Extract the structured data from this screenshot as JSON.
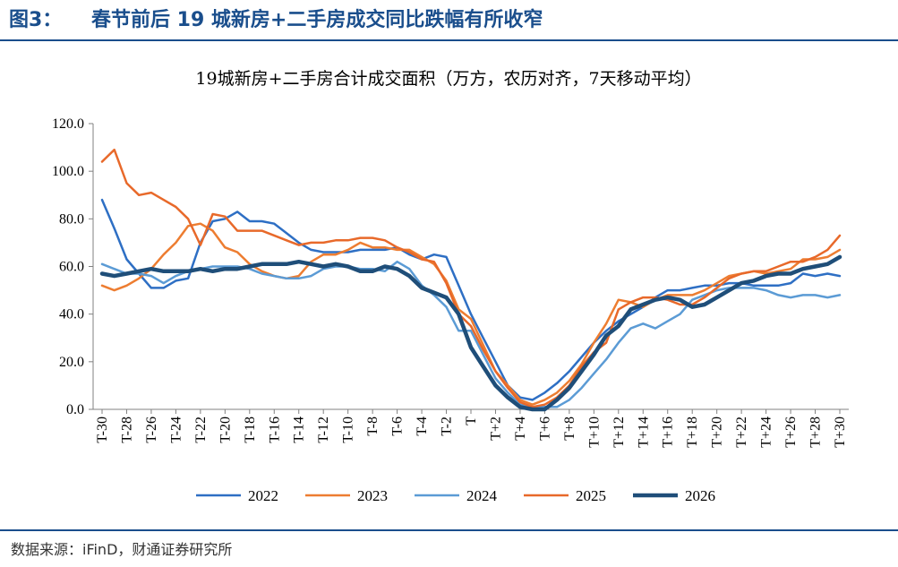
{
  "header": {
    "figure_number": "图3：",
    "figure_title": "春节前后 19 城新房+二手房成交同比跌幅有所收窄"
  },
  "source": "数据来源：iFinD，财通证券研究所",
  "chart_data": {
    "type": "line",
    "title": "19城新房+二手房合计成交面积（万方，农历对齐，7天移动平均）",
    "xlabel": "",
    "ylabel": "",
    "ylim": [
      0,
      120
    ],
    "yticks": [
      "0.0",
      "20.0",
      "40.0",
      "60.0",
      "80.0",
      "100.0",
      "120.0"
    ],
    "x": [
      "T-30",
      "T-29",
      "T-28",
      "T-27",
      "T-26",
      "T-25",
      "T-24",
      "T-23",
      "T-22",
      "T-21",
      "T-20",
      "T-19",
      "T-18",
      "T-17",
      "T-16",
      "T-15",
      "T-14",
      "T-13",
      "T-12",
      "T-11",
      "T-10",
      "T-9",
      "T-8",
      "T-7",
      "T-6",
      "T-5",
      "T-4",
      "T-3",
      "T-2",
      "T-1",
      "T",
      "T+1",
      "T+2",
      "T+3",
      "T+4",
      "T+5",
      "T+6",
      "T+7",
      "T+8",
      "T+9",
      "T+10",
      "T+11",
      "T+12",
      "T+13",
      "T+14",
      "T+15",
      "T+16",
      "T+17",
      "T+18",
      "T+19",
      "T+20",
      "T+21",
      "T+22",
      "T+23",
      "T+24",
      "T+25",
      "T+26",
      "T+27",
      "T+28",
      "T+29",
      "T+30"
    ],
    "xtick_labels": [
      "T-30",
      "T-28",
      "T-26",
      "T-24",
      "T-22",
      "T-20",
      "T-18",
      "T-16",
      "T-14",
      "T-12",
      "T-10",
      "T-8",
      "T-6",
      "T-4",
      "T-2",
      "T",
      "T+2",
      "T+4",
      "T+6",
      "T+8",
      "T+10",
      "T+12",
      "T+14",
      "T+16",
      "T+18",
      "T+20",
      "T+22",
      "T+24",
      "T+26",
      "T+28",
      "T+30"
    ],
    "legend_position": "bottom",
    "grid": false,
    "series": [
      {
        "name": "2022",
        "color": "#2e6fc4",
        "width": 2.5,
        "values": [
          88,
          76,
          63,
          57,
          51,
          51,
          54,
          55,
          70,
          79,
          80,
          83,
          79,
          79,
          78,
          74,
          70,
          67,
          66,
          66,
          66,
          67,
          67,
          67,
          68,
          65,
          63,
          65,
          64,
          52,
          40,
          30,
          20,
          10,
          5,
          4,
          7,
          11,
          16,
          22,
          28,
          33,
          37,
          40,
          43,
          47,
          50,
          50,
          51,
          52,
          52,
          53,
          53,
          52,
          52,
          52,
          53,
          57,
          56,
          57,
          56
        ]
      },
      {
        "name": "2023",
        "color": "#ed7d31",
        "width": 2.5,
        "values": [
          52,
          50,
          52,
          55,
          59,
          65,
          70,
          77,
          78,
          75,
          68,
          66,
          61,
          58,
          56,
          55,
          56,
          62,
          65,
          65,
          67,
          70,
          68,
          68,
          67,
          67,
          64,
          61,
          54,
          42,
          38,
          27,
          16,
          10,
          4,
          2,
          4,
          7,
          12,
          19,
          28,
          36,
          46,
          45,
          43,
          46,
          48,
          48,
          48,
          50,
          53,
          56,
          57,
          58,
          57,
          58,
          59,
          63,
          63,
          64,
          67
        ]
      },
      {
        "name": "2024",
        "color": "#5b9bd5",
        "width": 2.5,
        "values": [
          61,
          59,
          57,
          57,
          56,
          53,
          56,
          58,
          59,
          60,
          60,
          60,
          59,
          57,
          56,
          55,
          55,
          56,
          59,
          60,
          60,
          59,
          59,
          58,
          62,
          59,
          52,
          48,
          43,
          33,
          33,
          23,
          13,
          7,
          2,
          1,
          1,
          1,
          4,
          9,
          15,
          21,
          28,
          34,
          36,
          34,
          37,
          40,
          46,
          48,
          50,
          51,
          51,
          51,
          50,
          48,
          47,
          48,
          48,
          47,
          48
        ]
      },
      {
        "name": "2025",
        "color": "#e8692a",
        "width": 2.5,
        "values": [
          104,
          109,
          95,
          90,
          91,
          88,
          85,
          80,
          69,
          82,
          81,
          75,
          75,
          75,
          73,
          71,
          69,
          70,
          70,
          71,
          71,
          72,
          72,
          71,
          68,
          66,
          63,
          62,
          53,
          40,
          35,
          25,
          16,
          9,
          3,
          1,
          2,
          5,
          10,
          18,
          24,
          28,
          42,
          45,
          47,
          47,
          46,
          44,
          44,
          47,
          51,
          55,
          57,
          58,
          58,
          60,
          62,
          62,
          64,
          67,
          73
        ]
      },
      {
        "name": "2026",
        "color": "#1f4e79",
        "width": 4.5,
        "values": [
          57,
          56,
          57,
          58,
          59,
          58,
          58,
          58,
          59,
          58,
          59,
          59,
          60,
          61,
          61,
          61,
          62,
          61,
          60,
          61,
          60,
          58,
          58,
          60,
          59,
          56,
          51,
          49,
          47,
          40,
          26,
          18,
          10,
          5,
          1,
          0,
          0,
          4,
          9,
          16,
          23,
          31,
          35,
          42,
          44,
          46,
          47,
          46,
          43,
          44,
          47,
          50,
          53,
          54,
          56,
          57,
          57,
          59,
          60,
          61,
          64
        ]
      }
    ]
  }
}
